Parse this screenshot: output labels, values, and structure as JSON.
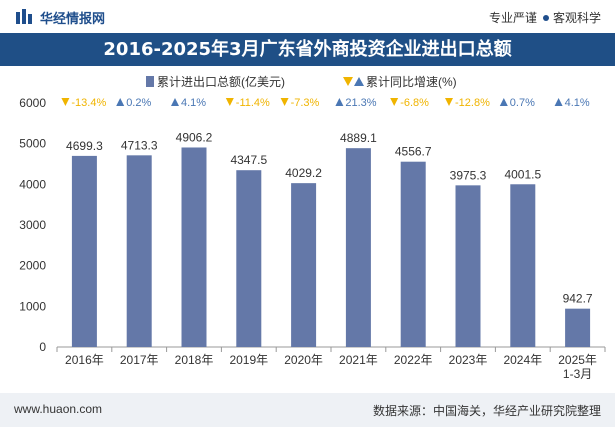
{
  "header": {
    "brand_name": "华经情报网",
    "tagline_left": "专业严谨",
    "tagline_right": "客观科学"
  },
  "footer": {
    "website": "www.huaon.com",
    "source": "数据来源：中国海关，华经产业研究院整理"
  },
  "colors": {
    "title_bg": "#1f4f86",
    "bar": "#6478a8",
    "up": "#4a77b4",
    "down": "#f0b400"
  },
  "chart_data": {
    "type": "bar",
    "title": "2016-2025年3月广东省外商投资企业进出口总额",
    "categories": [
      "2016年",
      "2017年",
      "2018年",
      "2019年",
      "2020年",
      "2021年",
      "2022年",
      "2023年",
      "2024年",
      "2025年\n1-3月"
    ],
    "series": [
      {
        "name": "累计进出口总额(亿美元)",
        "values": [
          4699.3,
          4713.3,
          4906.2,
          4347.5,
          4029.2,
          4889.1,
          4556.7,
          3975.3,
          4001.5,
          942.7
        ]
      },
      {
        "name": "累计同比增速(%)",
        "values": [
          -13.4,
          0.2,
          4.1,
          -11.4,
          -7.3,
          21.3,
          -6.8,
          -12.8,
          0.7,
          4.1
        ]
      }
    ],
    "ylim": [
      0,
      6000
    ],
    "yticks": [
      0,
      1000,
      2000,
      3000,
      4000,
      5000,
      6000
    ],
    "legend_position": "top-center",
    "grid": false
  }
}
